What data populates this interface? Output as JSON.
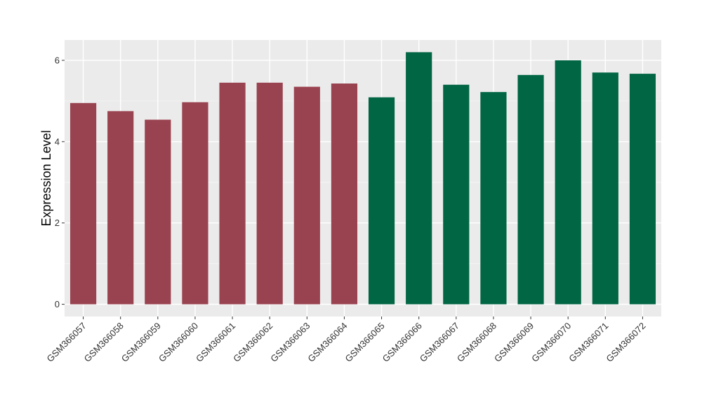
{
  "chart_data": {
    "type": "bar",
    "title": "",
    "xlabel": "",
    "ylabel": "Expression Level",
    "ylim": [
      -0.3,
      6.5
    ],
    "yticks": [
      0,
      2,
      4,
      6
    ],
    "grid": true,
    "background": "#ebebeb",
    "categories": [
      "GSM366057",
      "GSM366058",
      "GSM366059",
      "GSM366060",
      "GSM366061",
      "GSM366062",
      "GSM366063",
      "GSM366064",
      "GSM366065",
      "GSM366066",
      "GSM366067",
      "GSM366068",
      "GSM366069",
      "GSM366070",
      "GSM366071",
      "GSM366072"
    ],
    "values": [
      4.95,
      4.75,
      4.54,
      4.97,
      5.45,
      5.45,
      5.35,
      5.43,
      5.09,
      6.2,
      5.4,
      5.22,
      5.64,
      6.0,
      5.7,
      5.67
    ],
    "group_colors": [
      "#9a4350",
      "#9a4350",
      "#9a4350",
      "#9a4350",
      "#9a4350",
      "#9a4350",
      "#9a4350",
      "#9a4350",
      "#016644",
      "#016644",
      "#016644",
      "#016644",
      "#016644",
      "#016644",
      "#016644",
      "#016644"
    ]
  }
}
